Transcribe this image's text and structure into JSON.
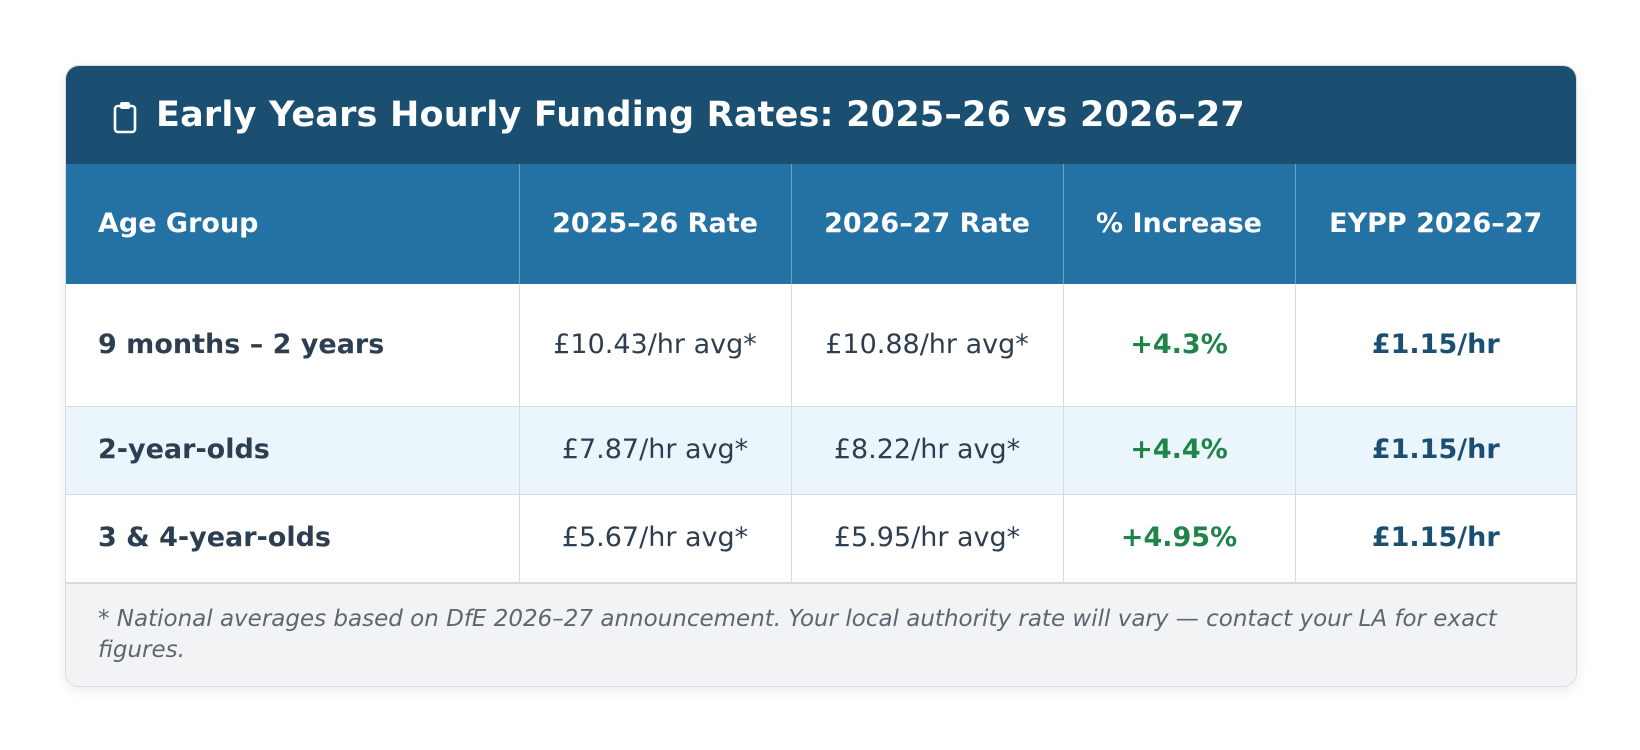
{
  "card": {
    "title": "Early Years Hourly Funding Rates: 2025–26 vs 2026–27",
    "title_icon": "clipboard-icon",
    "header_color": "#1b4f72"
  },
  "table": {
    "header_color": "#2471a3",
    "columns": [
      "Age Group",
      "2025–26 Rate",
      "2026–27 Rate",
      "% Increase",
      "EYPP 2026–27"
    ],
    "rows": [
      {
        "age_group": "9 months – 2 years",
        "rate_2025": "£10.43/hr avg*",
        "rate_2026": "£10.88/hr avg*",
        "increase": "+4.3%",
        "eypp": "£1.15/hr"
      },
      {
        "age_group": "2-year-olds",
        "rate_2025": "£7.87/hr avg*",
        "rate_2026": "£8.22/hr avg*",
        "increase": "+4.4%",
        "eypp": "£1.15/hr"
      },
      {
        "age_group": "3 & 4-year-olds",
        "rate_2025": "£5.67/hr avg*",
        "rate_2026": "£5.95/hr avg*",
        "increase": "+4.95%",
        "eypp": "£1.15/hr"
      }
    ],
    "increase_color": "#1e8449",
    "eypp_color": "#1b4f72"
  },
  "footnote": "* National averages based on DfE 2026–27 announcement. Your local authority rate will vary — contact your LA for exact figures."
}
